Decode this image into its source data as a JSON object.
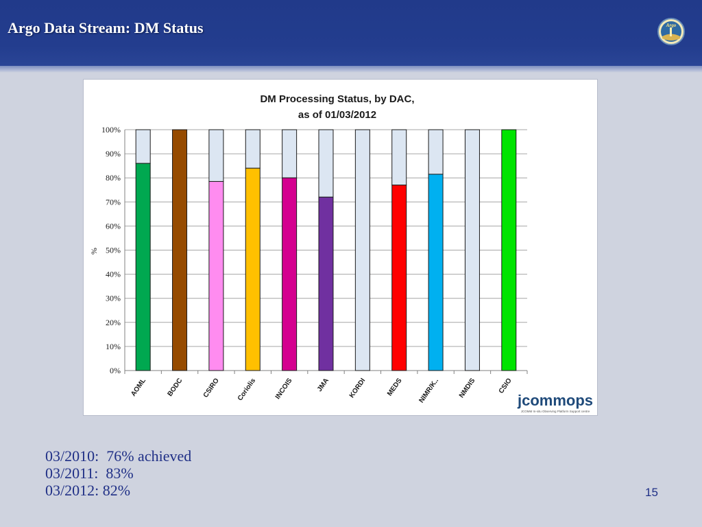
{
  "slide": {
    "title": "Argo Data Stream: DM Status",
    "logo_text": "Argo",
    "page_number": "15"
  },
  "summary": {
    "lines": [
      "03/2010:  76% achieved",
      "03/2011:  83%",
      "03/2012: 82%"
    ]
  },
  "watermark": {
    "brand": "jcommops",
    "tagline": "JCOMM In-situ Observing Platform Support centre"
  },
  "chart_data": {
    "type": "bar",
    "stacked": true,
    "title": "DM Processing Status, by DAC,",
    "subtitle": "as of  01/03/2012",
    "xlabel": "",
    "ylabel": "%",
    "ylim": [
      0,
      100
    ],
    "yticks": [
      "0%",
      "10%",
      "20%",
      "30%",
      "40%",
      "50%",
      "60%",
      "70%",
      "80%",
      "90%",
      "100%"
    ],
    "grid": true,
    "categories": [
      "AOML",
      "BODC",
      "CSIRO",
      "Coriolis",
      "INCOIS",
      "JMA",
      "KORDI",
      "MEDS",
      "NIMR/K..",
      "NMDIS",
      "CSIO"
    ],
    "values": [
      86,
      100,
      78.5,
      84,
      80,
      72,
      0,
      77,
      81.5,
      0,
      100
    ],
    "colors": [
      "#00a850",
      "#964b00",
      "#ff8cf0",
      "#ffc000",
      "#d4008f",
      "#7030a0",
      "#d9e4f1",
      "#ff0000",
      "#00b0f0",
      "#d9e4f1",
      "#00e400"
    ],
    "remainder_color": "#dce6f2"
  }
}
